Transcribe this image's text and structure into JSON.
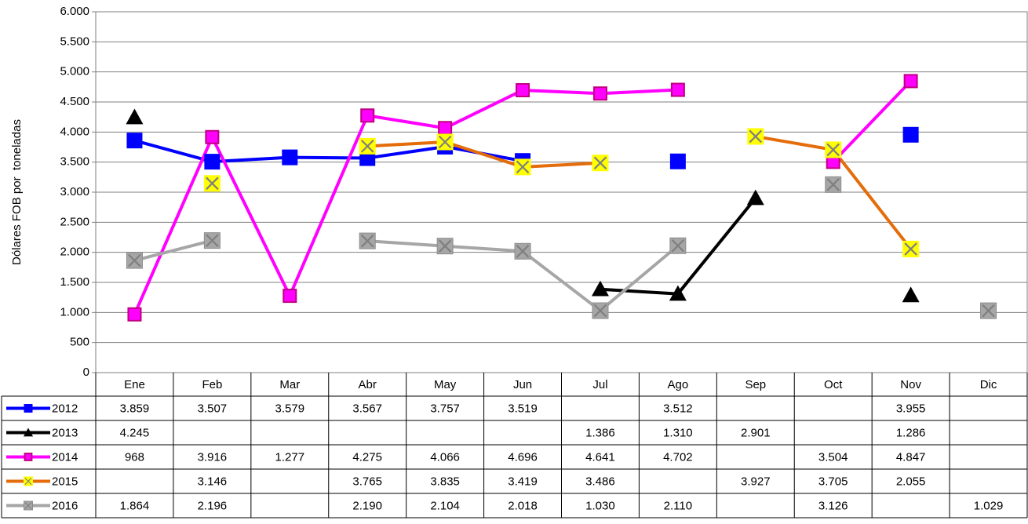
{
  "chart_data": {
    "type": "line",
    "y_label": "Dólares FOB por  toneladas",
    "categories": [
      "Ene",
      "Feb",
      "Mar",
      "Abr",
      "May",
      "Jun",
      "Jul",
      "Ago",
      "Sep",
      "Oct",
      "Nov",
      "Dic"
    ],
    "ylim": [
      0,
      6000
    ],
    "yticks": [
      0,
      {
        "value": 500,
        "label": "500"
      },
      {
        "value": 1000,
        "label": "1.000"
      },
      {
        "value": 1500,
        "label": "1.500"
      },
      {
        "value": 2000,
        "label": "2.000"
      },
      {
        "value": 2500,
        "label": "2.500"
      },
      {
        "value": 3000,
        "label": "3.000"
      },
      {
        "value": 3500,
        "label": "3.500"
      },
      {
        "value": 4000,
        "label": "4.000"
      },
      {
        "value": 4500,
        "label": "4.500"
      },
      {
        "value": 5000,
        "label": "5.000"
      },
      {
        "value": 5500,
        "label": "5.500"
      },
      {
        "value": 6000,
        "label": "6.000"
      }
    ],
    "grid": true,
    "series": [
      {
        "name": "2012",
        "color": "#0000ff",
        "marker": "square",
        "values": [
          3859,
          3507,
          3579,
          3567,
          3757,
          3519,
          null,
          3512,
          null,
          null,
          3955,
          null
        ],
        "value_labels": [
          "3.859",
          "3.507",
          "3.579",
          "3.567",
          "3.757",
          "3.519",
          null,
          "3.512",
          null,
          null,
          "3.955",
          null
        ]
      },
      {
        "name": "2013",
        "color": "#000000",
        "marker": "triangle",
        "values": [
          4245,
          null,
          null,
          null,
          null,
          null,
          1386,
          1310,
          2901,
          null,
          1286,
          null
        ],
        "value_labels": [
          "4.245",
          null,
          null,
          null,
          null,
          null,
          "1.386",
          "1.310",
          "2.901",
          null,
          "1.286",
          null
        ]
      },
      {
        "name": "2014",
        "color": "#ff00ff",
        "marker": "small-square",
        "values": [
          968,
          3916,
          1277,
          4275,
          4066,
          4696,
          4641,
          4702,
          null,
          3504,
          4847,
          null
        ],
        "value_labels": [
          "968",
          "3.916",
          "1.277",
          "4.275",
          "4.066",
          "4.696",
          "4.641",
          "4.702",
          null,
          "3.504",
          "4.847",
          null
        ]
      },
      {
        "name": "2015",
        "color": "#e46c0a",
        "marker": "x-square-yellow",
        "values": [
          null,
          3146,
          null,
          3765,
          3835,
          3419,
          3486,
          null,
          3927,
          3705,
          2055,
          null
        ],
        "value_labels": [
          null,
          "3.146",
          null,
          "3.765",
          "3.835",
          "3.419",
          "3.486",
          null,
          "3.927",
          "3.705",
          "2.055",
          null
        ]
      },
      {
        "name": "2016",
        "color": "#a6a6a6",
        "marker": "x-square-gray",
        "values": [
          1864,
          2196,
          null,
          2190,
          2104,
          2018,
          1030,
          2110,
          null,
          3126,
          null,
          1029
        ],
        "value_labels": [
          "1.864",
          "2.196",
          null,
          "2.190",
          "2.104",
          "2.018",
          "1.030",
          "2.110",
          null,
          "3.126",
          null,
          "1.029"
        ]
      }
    ]
  }
}
